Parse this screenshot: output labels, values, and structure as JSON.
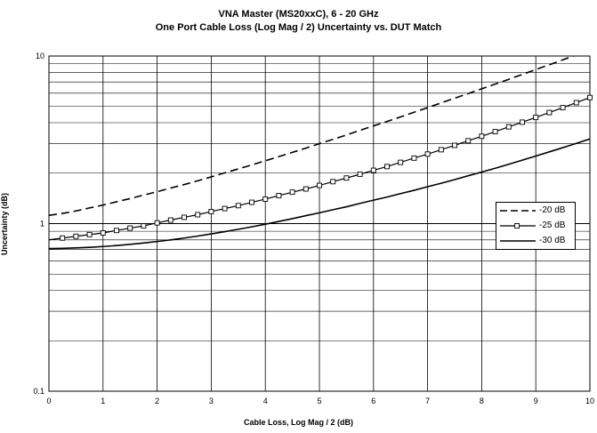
{
  "chart_data": {
    "type": "line",
    "title": "VNA Master (MS20xxC), 6 - 20 GHz",
    "subtitle": "One Port Cable Loss (Log Mag / 2) Uncertainty vs. DUT Match",
    "xlabel": "Cable Loss, Log Mag / 2 (dB)",
    "ylabel": "Uncertainty (dB)",
    "xlim": [
      0,
      10
    ],
    "ylim": [
      0.1,
      10
    ],
    "yscale": "log",
    "grid": true,
    "legend_position": "right",
    "x_ticks": [
      "0",
      "1",
      "2",
      "3",
      "4",
      "5",
      "6",
      "7",
      "8",
      "9",
      "10"
    ],
    "y_ticks": [
      "0.1",
      "1",
      "10"
    ],
    "x": [
      0,
      0.25,
      0.5,
      0.75,
      1,
      1.25,
      1.5,
      1.75,
      2,
      2.25,
      2.5,
      2.75,
      3,
      3.25,
      3.5,
      3.75,
      4,
      4.25,
      4.5,
      4.75,
      5,
      5.25,
      5.5,
      5.75,
      6,
      6.25,
      6.5,
      6.75,
      7,
      7.25,
      7.5,
      7.75,
      8,
      8.25,
      8.5,
      8.75,
      9,
      9.25,
      9.5,
      9.75,
      10
    ],
    "series": [
      {
        "name": "-20 dB",
        "style": "dashed",
        "values": [
          1.12,
          1.15,
          1.19,
          1.24,
          1.29,
          1.35,
          1.41,
          1.48,
          1.55,
          1.63,
          1.71,
          1.8,
          1.9,
          2.01,
          2.12,
          2.24,
          2.37,
          2.51,
          2.66,
          2.82,
          3.0,
          3.18,
          3.38,
          3.6,
          3.83,
          4.07,
          4.33,
          4.62,
          4.92,
          5.25,
          5.6,
          5.97,
          6.37,
          6.8,
          7.26,
          7.76,
          8.3,
          8.87,
          9.5,
          10.15,
          10.9
        ]
      },
      {
        "name": "-25 dB",
        "style": "solid-square-markers",
        "values": [
          0.8,
          0.82,
          0.84,
          0.86,
          0.88,
          0.91,
          0.94,
          0.97,
          1.01,
          1.05,
          1.09,
          1.13,
          1.18,
          1.23,
          1.28,
          1.34,
          1.4,
          1.47,
          1.54,
          1.61,
          1.69,
          1.78,
          1.87,
          1.97,
          2.08,
          2.19,
          2.32,
          2.46,
          2.6,
          2.76,
          2.93,
          3.12,
          3.32,
          3.54,
          3.78,
          4.03,
          4.3,
          4.6,
          4.92,
          5.27,
          5.65
        ]
      },
      {
        "name": "-30 dB",
        "style": "solid",
        "values": [
          0.71,
          0.712,
          0.716,
          0.722,
          0.73,
          0.74,
          0.752,
          0.766,
          0.782,
          0.8,
          0.82,
          0.843,
          0.868,
          0.895,
          0.925,
          0.957,
          0.992,
          1.03,
          1.07,
          1.115,
          1.16,
          1.21,
          1.26,
          1.32,
          1.38,
          1.44,
          1.51,
          1.58,
          1.66,
          1.74,
          1.83,
          1.93,
          2.03,
          2.14,
          2.26,
          2.39,
          2.53,
          2.68,
          2.84,
          3.01,
          3.2
        ]
      }
    ]
  }
}
